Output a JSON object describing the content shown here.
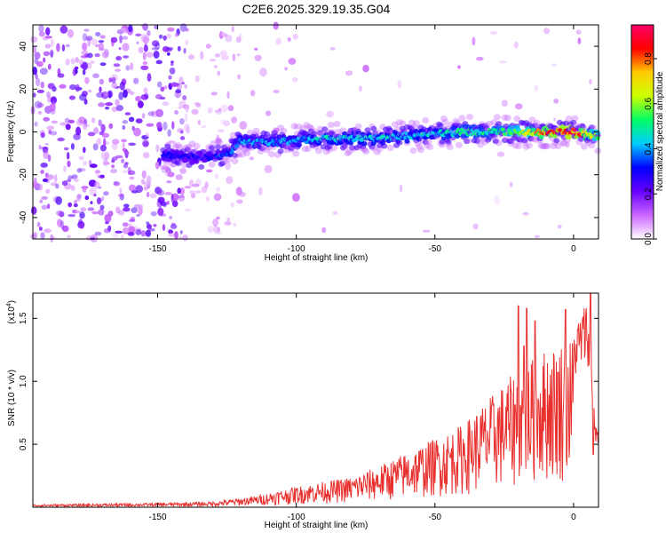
{
  "title": "C2E6.2025.329.19.35.G04",
  "chart_data": [
    {
      "type": "heatmap",
      "xlabel": "Height of straight line (km)",
      "ylabel": "Frequency (Hz)",
      "xlim": [
        -195,
        9
      ],
      "ylim": [
        -50,
        50
      ],
      "xticks": [
        {
          "value": -150,
          "label": "-150"
        },
        {
          "value": -100,
          "label": "-100"
        },
        {
          "value": -50,
          "label": "-50"
        },
        {
          "value": 0,
          "label": "0"
        }
      ],
      "yticks": [
        {
          "value": -40,
          "label": "-40"
        },
        {
          "value": -20,
          "label": "-20"
        },
        {
          "value": 0,
          "label": "0"
        },
        {
          "value": 20,
          "label": "20"
        },
        {
          "value": 40,
          "label": "40"
        }
      ],
      "ridge": [
        {
          "x": -145,
          "freq": -11,
          "amp": 0.3
        },
        {
          "x": -135,
          "freq": -12,
          "amp": 0.3
        },
        {
          "x": -125,
          "freq": -11,
          "amp": 0.35
        },
        {
          "x": -120,
          "freq": -4,
          "amp": 0.4
        },
        {
          "x": -110,
          "freq": -5,
          "amp": 0.4
        },
        {
          "x": -100,
          "freq": -4,
          "amp": 0.4
        },
        {
          "x": -90,
          "freq": -3,
          "amp": 0.45
        },
        {
          "x": -80,
          "freq": -3,
          "amp": 0.45
        },
        {
          "x": -70,
          "freq": -3,
          "amp": 0.45
        },
        {
          "x": -60,
          "freq": -2,
          "amp": 0.45
        },
        {
          "x": -50,
          "freq": -1,
          "amp": 0.45
        },
        {
          "x": -40,
          "freq": 0,
          "amp": 0.5
        },
        {
          "x": -30,
          "freq": 0,
          "amp": 0.5
        },
        {
          "x": -20,
          "freq": 0,
          "amp": 0.6
        },
        {
          "x": -10,
          "freq": 0,
          "amp": 0.8
        },
        {
          "x": 0,
          "freq": 0,
          "amp": 0.9
        },
        {
          "x": 8,
          "freq": -2,
          "amp": 0.6
        }
      ],
      "colorbar": {
        "label": "Normalized spectral amplitude",
        "range": [
          0,
          0.95
        ],
        "ticks": [
          {
            "value": 0.0,
            "label": "0.0"
          },
          {
            "value": 0.2,
            "label": "0.2"
          },
          {
            "value": 0.4,
            "label": "0.4"
          },
          {
            "value": 0.6,
            "label": "0.6"
          },
          {
            "value": 0.8,
            "label": "0.8"
          }
        ],
        "colors": [
          "#ffffff",
          "#cc66ff",
          "#6600ff",
          "#0000ff",
          "#00ccff",
          "#00ff66",
          "#ccff00",
          "#ffcc00",
          "#ff0000",
          "#ff0066"
        ]
      }
    },
    {
      "type": "line",
      "xlabel": "Height of straight line (km)",
      "ylabel": "SNR (10 * v/v)",
      "y_multiplier": "(x10",
      "y_multiplier_exp": "4",
      "y_multiplier_close": ")",
      "xlim": [
        -195,
        9
      ],
      "ylim": [
        0,
        1.7
      ],
      "xticks": [
        {
          "value": -150,
          "label": "-150"
        },
        {
          "value": -100,
          "label": "-100"
        },
        {
          "value": -50,
          "label": "-50"
        },
        {
          "value": 0,
          "label": "0"
        }
      ],
      "yticks": [
        {
          "value": 0.5,
          "label": "0.5"
        },
        {
          "value": 1.0,
          "label": "1.0"
        },
        {
          "value": 1.5,
          "label": "1.5"
        }
      ],
      "color": "#e8312f",
      "envelope": [
        {
          "x": -195,
          "y": 0.02
        },
        {
          "x": -150,
          "y": 0.03
        },
        {
          "x": -130,
          "y": 0.04
        },
        {
          "x": -115,
          "y": 0.08
        },
        {
          "x": -100,
          "y": 0.15
        },
        {
          "x": -80,
          "y": 0.22
        },
        {
          "x": -70,
          "y": 0.3
        },
        {
          "x": -60,
          "y": 0.4
        },
        {
          "x": -50,
          "y": 0.5
        },
        {
          "x": -40,
          "y": 0.6
        },
        {
          "x": -30,
          "y": 0.8
        },
        {
          "x": -20,
          "y": 1.0
        },
        {
          "x": -10,
          "y": 1.15
        },
        {
          "x": 0,
          "y": 1.25
        },
        {
          "x": 5,
          "y": 1.45
        },
        {
          "x": 8,
          "y": 0.6
        }
      ],
      "peaks": [
        {
          "x": -20,
          "y": 1.6
        },
        {
          "x": -17,
          "y": 1.58
        },
        {
          "x": -14,
          "y": 1.48
        },
        {
          "x": -18,
          "y": 1.28
        },
        {
          "x": -3,
          "y": 1.57
        },
        {
          "x": 6,
          "y": 1.7
        },
        {
          "x": 7,
          "y": 0.42
        }
      ]
    }
  ]
}
